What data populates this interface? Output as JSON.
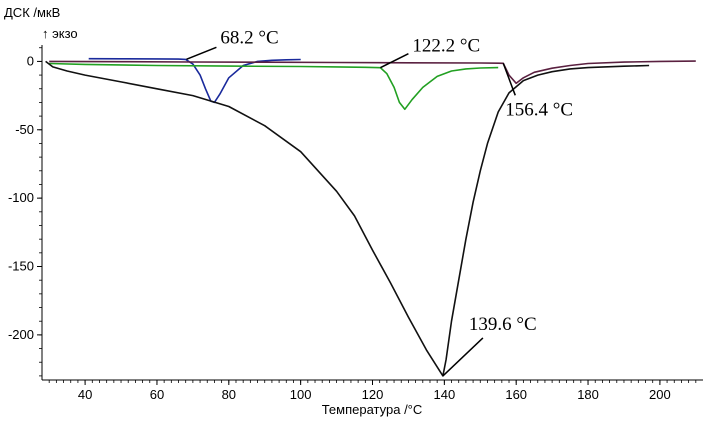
{
  "chart_data": {
    "type": "line",
    "title": "",
    "ylabel": "ДСК /мкВ",
    "exo_label": "↑ экзо",
    "xlabel": "Температура /°C",
    "xlim": [
      28,
      212
    ],
    "ylim": [
      -233,
      12
    ],
    "x_ticks": [
      40,
      60,
      80,
      100,
      120,
      140,
      160,
      180,
      200
    ],
    "y_ticks": [
      0,
      -50,
      -100,
      -150,
      -200
    ],
    "grid": false,
    "legend": "none",
    "colors": {
      "blue": "#1a2a9c",
      "green": "#22a022",
      "black": "#111111",
      "maroon": "#5a2040"
    },
    "series": [
      {
        "color_key": "blue",
        "x": [
          41,
          50,
          60,
          66,
          68,
          70,
          72,
          73.5,
          75,
          76,
          77.5,
          80,
          84,
          88,
          92,
          96,
          100
        ],
        "y": [
          2,
          1.9,
          1.8,
          1.7,
          1.5,
          -2,
          -10,
          -20,
          -29,
          -30,
          -24,
          -12,
          -3,
          0,
          0.8,
          1.2,
          1.4
        ]
      },
      {
        "color_key": "green",
        "x": [
          30,
          40,
          60,
          80,
          100,
          110,
          118,
          121,
          122.2,
          124,
          126,
          127.5,
          129,
          131,
          134,
          138,
          142,
          146,
          150,
          155
        ],
        "y": [
          -1.5,
          -2.2,
          -3,
          -3.4,
          -3.7,
          -4,
          -4.3,
          -4.5,
          -4.6,
          -9,
          -19,
          -30,
          -35,
          -28,
          -19,
          -11,
          -7,
          -5.5,
          -4.8,
          -4.5
        ]
      },
      {
        "color_key": "maroon",
        "x": [
          30,
          50,
          70,
          90,
          110,
          130,
          150,
          155,
          156.4,
          158,
          160,
          162,
          165,
          170,
          175,
          180,
          190,
          200,
          210
        ],
        "y": [
          0,
          -0.2,
          -0.4,
          -0.6,
          -0.8,
          -1,
          -1.2,
          -1.3,
          -1.4,
          -10,
          -16,
          -12,
          -8,
          -5,
          -3,
          -1.5,
          -0.5,
          0,
          0.2
        ]
      },
      {
        "color_key": "black",
        "x": [
          29,
          31,
          35,
          40,
          50,
          60,
          70,
          80,
          90,
          100,
          110,
          115,
          120,
          125,
          130,
          135,
          139.6,
          140.5,
          142,
          144,
          146,
          148,
          150,
          152,
          155,
          158,
          162,
          166,
          170,
          175,
          180,
          190,
          197
        ],
        "y": [
          0,
          -4,
          -7,
          -10,
          -15,
          -20,
          -25,
          -33,
          -47,
          -66,
          -95,
          -113,
          -138,
          -162,
          -187,
          -211,
          -230,
          -218,
          -190,
          -160,
          -130,
          -103,
          -80,
          -60,
          -37,
          -23,
          -14,
          -10,
          -7.5,
          -5.5,
          -4.5,
          -3.5,
          -3
        ]
      }
    ],
    "annotations": [
      {
        "label": "68.2 °C",
        "x": 68.2,
        "y": 1.5
      },
      {
        "label": "122.2 °C",
        "x": 122.2,
        "y": -4.6
      },
      {
        "label": "156.4 °C",
        "x": 156.4,
        "y": -1.4
      },
      {
        "label": "139.6 °C",
        "x": 139.6,
        "y": -230
      }
    ]
  }
}
